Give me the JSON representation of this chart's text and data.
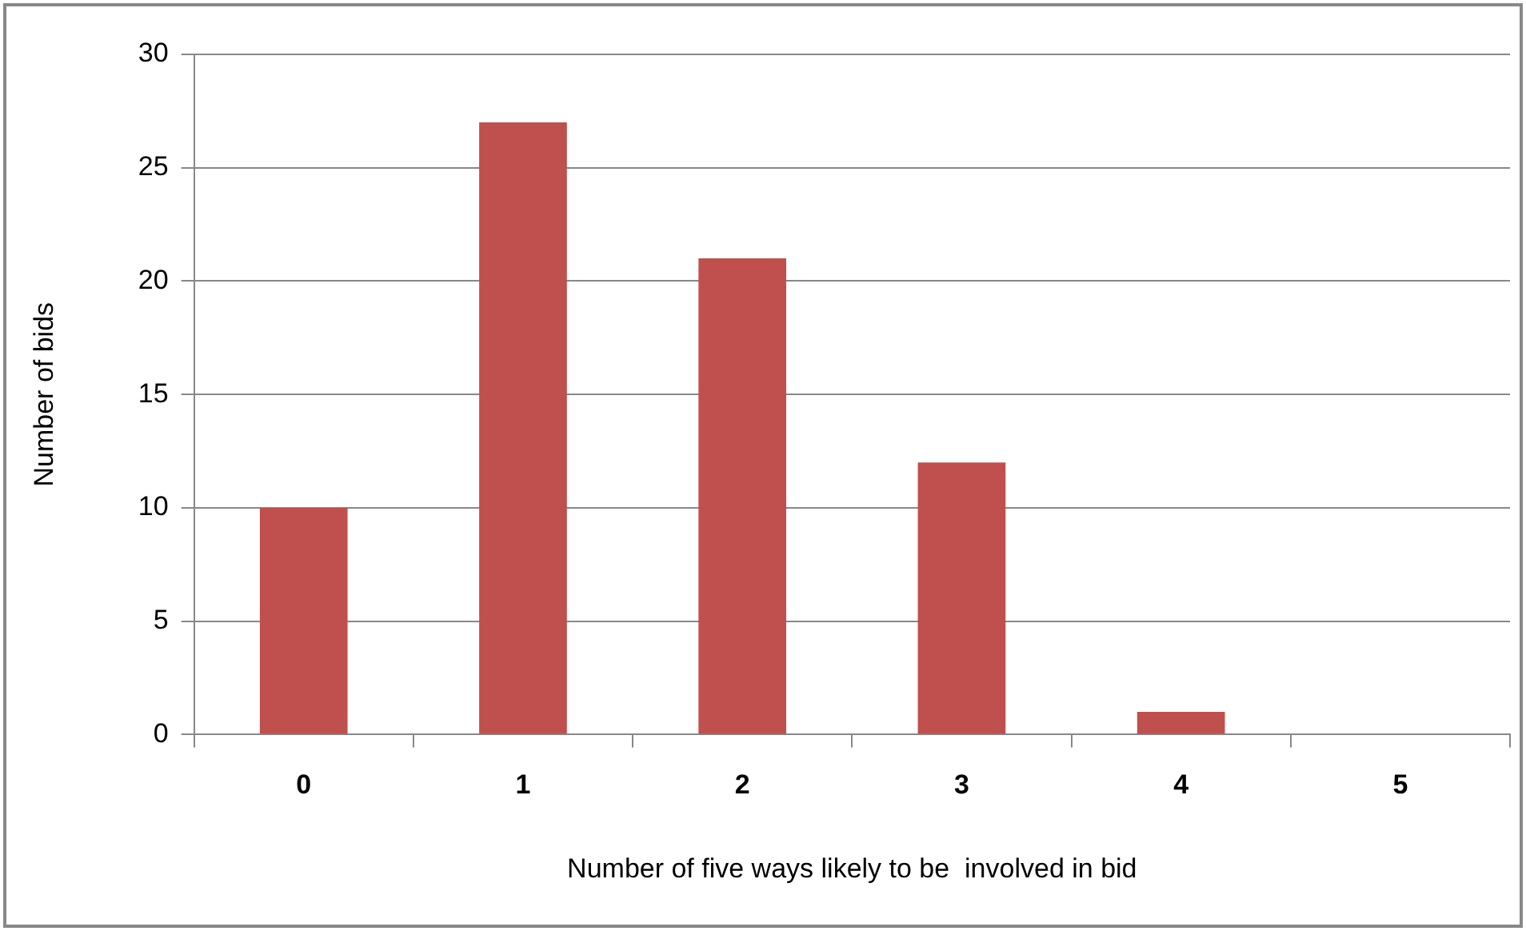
{
  "chart_data": {
    "type": "bar",
    "xlabel": "Number of five ways likely to be  involved in bid",
    "ylabel": "Number of bids",
    "categories": [
      "0",
      "1",
      "2",
      "3",
      "4",
      "5"
    ],
    "values": [
      10,
      27,
      21,
      12,
      1,
      0
    ],
    "color": "#c0504d",
    "ylim": [
      0,
      30
    ],
    "yticks": [
      0,
      5,
      10,
      15,
      20,
      25,
      30
    ],
    "grid": "y",
    "legend": false
  }
}
